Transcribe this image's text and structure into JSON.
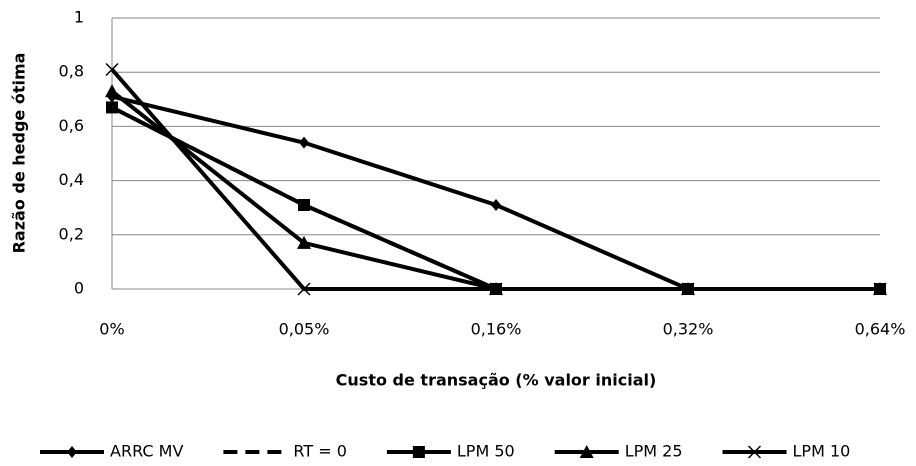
{
  "chart_data": {
    "type": "line",
    "xlabel": "Custo de transação (% valor inicial)",
    "ylabel": "Razão de hedge ótima",
    "categories": [
      "0%",
      "0,05%",
      "0,16%",
      "0,32%",
      "0,64%"
    ],
    "ylim": [
      0,
      1
    ],
    "yticks": [
      0,
      {
        "value": 0.2,
        "label": "0,2"
      },
      {
        "value": 0.4,
        "label": "0,4"
      },
      {
        "value": 0.6,
        "label": "0,6"
      },
      {
        "value": 0.8,
        "label": "0,8"
      },
      1
    ],
    "grid": true,
    "legend": "bottom",
    "series": [
      {
        "name": "ARRC MV",
        "color": "#000000",
        "marker": "diamond",
        "line_style": "solid",
        "values": [
          0.71,
          0.54,
          0.31,
          0,
          0
        ]
      },
      {
        "name": "RT = 0",
        "color": "#000000",
        "marker": "none",
        "line_style": "dashed",
        "values": [
          0.67,
          0.31,
          0,
          0,
          0
        ]
      },
      {
        "name": "LPM 50",
        "color": "#000000",
        "marker": "square",
        "line_style": "solid",
        "values": [
          0.67,
          0.31,
          0,
          0,
          0
        ]
      },
      {
        "name": "LPM 25",
        "color": "#000000",
        "marker": "triangle",
        "line_style": "solid",
        "values": [
          0.73,
          0.17,
          0,
          0,
          0
        ]
      },
      {
        "name": "LPM 10",
        "color": "#000000",
        "marker": "x",
        "line_style": "solid",
        "values": [
          0.81,
          0,
          0,
          0,
          0
        ]
      }
    ]
  }
}
